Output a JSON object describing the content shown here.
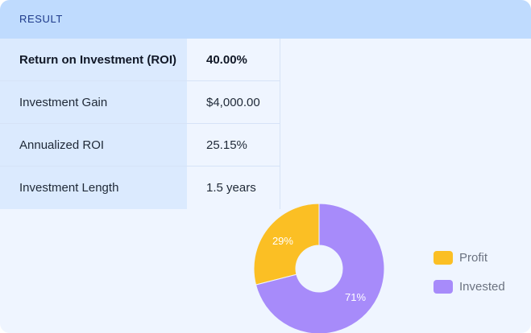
{
  "header": {
    "title": "RESULT"
  },
  "results": [
    {
      "label": "Return on Investment (ROI)",
      "value": "40.00%"
    },
    {
      "label": "Investment Gain",
      "value": "$4,000.00"
    },
    {
      "label": "Annualized ROI",
      "value": "25.15%"
    },
    {
      "label": "Investment Length",
      "value": "1.5 years"
    }
  ],
  "colors": {
    "profit": "#fbbf24",
    "invested": "#a78bfa"
  },
  "chart_data": {
    "type": "pie",
    "categories": [
      "Profit",
      "Invested"
    ],
    "values": [
      29,
      71
    ],
    "data_labels": [
      "29%",
      "71%"
    ],
    "legend": [
      "Profit",
      "Invested"
    ],
    "legend_position": "right"
  }
}
